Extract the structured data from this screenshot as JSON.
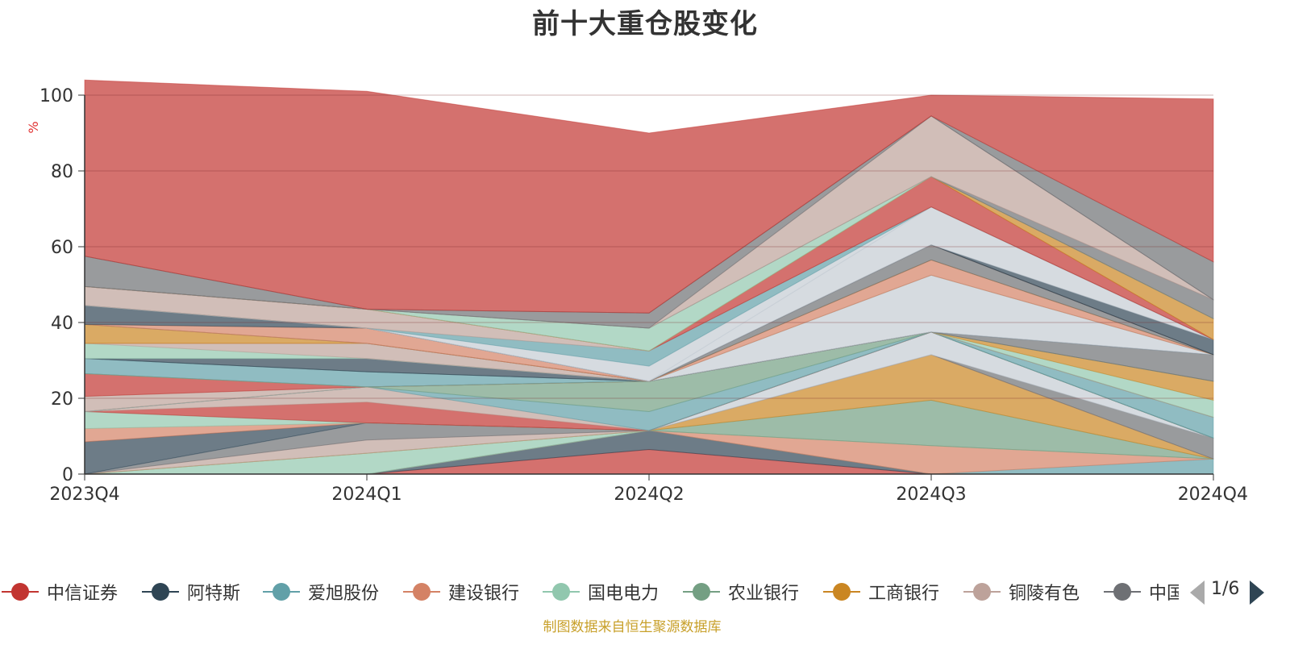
{
  "chart_data": {
    "type": "area",
    "title": "前十大重仓股变化",
    "ylabel": "%",
    "ylim": [
      0,
      100
    ],
    "yticks": [
      "0",
      "20",
      "40",
      "60",
      "80",
      "100"
    ],
    "categories": [
      "2023Q4",
      "2024Q1",
      "2024Q2",
      "2024Q3",
      "2024Q4"
    ],
    "stacked": true,
    "grid": true,
    "series": [
      {
        "name": "中信证券",
        "color": "#c23531",
        "values": [
          0,
          0,
          6.5,
          0,
          0
        ]
      },
      {
        "name": "阿特斯",
        "color": "#2f4554",
        "values": [
          0,
          0,
          5,
          0,
          0
        ]
      },
      {
        "name": "爱旭股份",
        "color": "#61a0a8",
        "values": [
          0,
          0,
          0,
          0,
          4
        ]
      },
      {
        "name": "建设银行",
        "color": "#d48265",
        "values": [
          0,
          0,
          0,
          7.5,
          0
        ]
      },
      {
        "name": "国电电力",
        "color": "#91c7ae",
        "values": [
          0,
          5.5,
          0,
          0,
          0
        ]
      },
      {
        "name": "农业银行",
        "color": "#749f83",
        "values": [
          0,
          0,
          0,
          12,
          0
        ]
      },
      {
        "name": "工商银行",
        "color": "#ca8622",
        "values": [
          0,
          0,
          0,
          12,
          0
        ]
      },
      {
        "name": "铜陵有色",
        "color": "#bda29a",
        "values": [
          0,
          3.5,
          0,
          0,
          0
        ]
      },
      {
        "name": "中国",
        "color": "#6e7074",
        "values": [
          0,
          4.5,
          0,
          0,
          5.5
        ]
      },
      {
        "values": [
          0,
          0,
          0,
          6,
          0
        ],
        "color": "#c4ccd3"
      },
      {
        "values": [
          8.5,
          0,
          0,
          0,
          0
        ],
        "color": "#2f4554"
      },
      {
        "values": [
          3.5,
          0,
          0,
          0,
          0
        ],
        "color": "#d48265"
      },
      {
        "values": [
          4.5,
          0,
          0,
          0,
          0
        ],
        "color": "#91c7ae"
      },
      {
        "values": [
          0,
          5.5,
          0,
          0,
          0
        ],
        "color": "#c23531"
      },
      {
        "values": [
          0,
          4,
          0,
          0,
          0
        ],
        "color": "#bda29a"
      },
      {
        "values": [
          0,
          0,
          5,
          0,
          0
        ],
        "color": "#61a0a8"
      },
      {
        "values": [
          0,
          0,
          8,
          0,
          0
        ],
        "color": "#749f83"
      },
      {
        "values": [
          0,
          0,
          0,
          0,
          5.5
        ],
        "color": "#61a0a8"
      },
      {
        "values": [
          4,
          0,
          0,
          0,
          0
        ],
        "color": "#bda29a"
      },
      {
        "values": [
          6,
          0,
          0,
          0,
          0
        ],
        "color": "#c23531"
      },
      {
        "values": [
          0,
          0,
          0,
          0,
          4.5
        ],
        "color": "#91c7ae"
      },
      {
        "values": [
          0,
          0,
          0,
          0,
          5
        ],
        "color": "#ca8622"
      },
      {
        "values": [
          4,
          4,
          0,
          0,
          0
        ],
        "color": "#61a0a8"
      },
      {
        "values": [
          0,
          0,
          0,
          0,
          7
        ],
        "color": "#6e7074"
      },
      {
        "values": [
          0,
          3.5,
          0,
          0,
          0
        ],
        "color": "#2f4554"
      },
      {
        "values": [
          0,
          0,
          0,
          15,
          0
        ],
        "color": "#c4ccd3"
      },
      {
        "values": [
          4,
          0,
          0,
          0,
          0
        ],
        "color": "#91c7ae"
      },
      {
        "values": [
          0,
          4,
          0,
          0,
          0
        ],
        "color": "#bda29a"
      },
      {
        "values": [
          0,
          0,
          0,
          4,
          0
        ],
        "color": "#d48265"
      },
      {
        "values": [
          5,
          0,
          0,
          0,
          0
        ],
        "color": "#ca8622"
      },
      {
        "values": [
          0,
          0,
          0,
          4,
          0
        ],
        "color": "#6e7074"
      },
      {
        "values": [
          0,
          4,
          0,
          0,
          0
        ],
        "color": "#d48265"
      },
      {
        "values": [
          5,
          0,
          0,
          0,
          0
        ],
        "color": "#2f4554"
      },
      {
        "values": [
          0,
          0,
          0,
          0,
          4
        ],
        "color": "#2f4554"
      },
      {
        "values": [
          0,
          0,
          0,
          10,
          0
        ],
        "color": "#c4ccd3"
      },
      {
        "values": [
          0,
          0,
          4,
          0,
          0
        ],
        "color": "#c4ccd3"
      },
      {
        "values": [
          0,
          0,
          4,
          0,
          0
        ],
        "color": "#61a0a8"
      },
      {
        "values": [
          5,
          5,
          0,
          0,
          0
        ],
        "color": "#bda29a"
      },
      {
        "values": [
          0,
          0,
          0,
          8,
          0
        ],
        "color": "#c23531"
      },
      {
        "values": [
          0,
          0,
          0,
          0,
          5.5
        ],
        "color": "#ca8622"
      },
      {
        "values": [
          0,
          0,
          6,
          0,
          0
        ],
        "color": "#91c7ae"
      },
      {
        "values": [
          0,
          0,
          0,
          0,
          5
        ],
        "color": "#6e7074"
      },
      {
        "values": [
          0,
          0,
          0,
          16,
          0
        ],
        "color": "#bda29a"
      },
      {
        "values": [
          8,
          0,
          4,
          0,
          0
        ],
        "color": "#6e7074"
      },
      {
        "values": [
          0,
          0,
          0,
          0,
          10
        ],
        "color": "#6e7074"
      },
      {
        "values": [
          46.5,
          57.5,
          47.5,
          5.5,
          43
        ],
        "color": "#c23531"
      }
    ]
  },
  "legend": {
    "items": [
      {
        "label": "中信证券",
        "color": "#c23531"
      },
      {
        "label": "阿特斯",
        "color": "#2f4554"
      },
      {
        "label": "爱旭股份",
        "color": "#61a0a8"
      },
      {
        "label": "建设银行",
        "color": "#d48265"
      },
      {
        "label": "国电电力",
        "color": "#91c7ae"
      },
      {
        "label": "农业银行",
        "color": "#749f83"
      },
      {
        "label": "工商银行",
        "color": "#ca8622"
      },
      {
        "label": "铜陵有色",
        "color": "#bda29a"
      },
      {
        "label": "中国",
        "color": "#6e7074"
      }
    ],
    "page": "1/6"
  },
  "source_note": "制图数据来自恒生聚源数据库"
}
